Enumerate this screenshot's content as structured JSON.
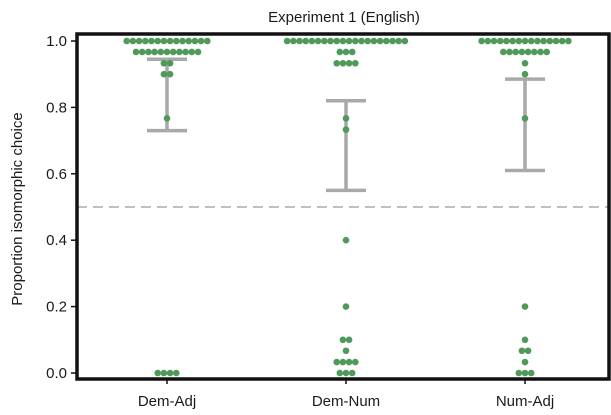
{
  "chart_data": {
    "type": "scatter",
    "title": "Experiment 1 (English)",
    "xlabel": "",
    "ylabel": "Proportion isomorphic choice",
    "categories": [
      "Dem-Adj",
      "Dem-Num",
      "Num-Adj"
    ],
    "ylim": [
      -0.01,
      1.02
    ],
    "yticks": [
      0.0,
      0.2,
      0.4,
      0.6,
      0.8,
      1.0
    ],
    "ytick_labels": [
      "0.0",
      "0.2",
      "0.4",
      "0.6",
      "0.8",
      "1.0"
    ],
    "reference_line": 0.5,
    "grid": false,
    "colors": {
      "points": "#4f9a5a",
      "error_bars": "#a9a9a9",
      "reference_line": "#9a9a9a",
      "frame": "#111111"
    },
    "groups": [
      {
        "category": "Dem-Adj",
        "ci": [
          0.73,
          0.945
        ],
        "points": [
          {
            "y": 1.0,
            "n": 14
          },
          {
            "y": 0.967,
            "n": 11
          },
          {
            "y": 0.933,
            "n": 2
          },
          {
            "y": 0.9,
            "n": 2
          },
          {
            "y": 0.767,
            "n": 1
          },
          {
            "y": 0.0,
            "n": 4
          }
        ]
      },
      {
        "category": "Dem-Num",
        "ci": [
          0.55,
          0.82
        ],
        "points": [
          {
            "y": 1.0,
            "n": 20
          },
          {
            "y": 0.967,
            "n": 3
          },
          {
            "y": 0.933,
            "n": 4
          },
          {
            "y": 0.767,
            "n": 1
          },
          {
            "y": 0.733,
            "n": 1
          },
          {
            "y": 0.4,
            "n": 1
          },
          {
            "y": 0.2,
            "n": 1
          },
          {
            "y": 0.1,
            "n": 2
          },
          {
            "y": 0.067,
            "n": 1
          },
          {
            "y": 0.033,
            "n": 4
          },
          {
            "y": 0.0,
            "n": 3
          }
        ]
      },
      {
        "category": "Num-Adj",
        "ci": [
          0.61,
          0.885
        ],
        "points": [
          {
            "y": 1.0,
            "n": 15
          },
          {
            "y": 0.967,
            "n": 8
          },
          {
            "y": 0.933,
            "n": 1
          },
          {
            "y": 0.9,
            "n": 1
          },
          {
            "y": 0.767,
            "n": 1
          },
          {
            "y": 0.2,
            "n": 1
          },
          {
            "y": 0.1,
            "n": 1
          },
          {
            "y": 0.067,
            "n": 2
          },
          {
            "y": 0.033,
            "n": 1
          },
          {
            "y": 0.0,
            "n": 3
          }
        ]
      }
    ]
  }
}
